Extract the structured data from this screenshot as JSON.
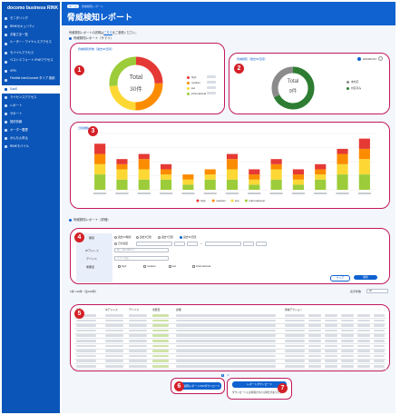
{
  "sidebar": {
    "brand": "docomo business RINK",
    "items": [
      {
        "label": "モニタリング"
      },
      {
        "label": "RINKセキュリティ"
      },
      {
        "label": "お客さま一覧"
      },
      {
        "label": "ルーター・ワイヤレスアクセス"
      },
      {
        "label": "モバイルアクセス"
      },
      {
        "label": "ベストエフォート IPoEアクセス"
      },
      {
        "label": "VPN"
      },
      {
        "label": "Flexible InterConnect タイプ 接続"
      },
      {
        "label": "SaaS"
      },
      {
        "label": "ライセンスアクセス"
      },
      {
        "label": "レポート"
      },
      {
        "label": "サポート"
      },
      {
        "label": "契約情報"
      },
      {
        "label": "オーダー履歴"
      },
      {
        "label": "かんたん申込"
      },
      {
        "label": "RINKモバイル"
      }
    ],
    "active_index": 8
  },
  "header": {
    "crumb_home": "ホーム",
    "crumb_current": "脅威検知レポート",
    "title": "脅威検知レポート"
  },
  "intro": {
    "text": "脅威検知レポートの説明は",
    "link": "こちら",
    "suffix": "をご参照ください。"
  },
  "summary_heading": "脅威検知レポート（サマリ）",
  "card1": {
    "title": "脅威検知件数（過去30日間）",
    "total_label": "Total",
    "total_value": "30件",
    "legend": [
      "high",
      "medium",
      "low",
      "informational"
    ]
  },
  "card2": {
    "title": "脅威検知（過去30日間）",
    "date": "2024/01/31",
    "total_label": "Total",
    "total_value": "9件",
    "legend": [
      "未対応",
      "対応済み"
    ]
  },
  "card3": {
    "title": "日別推移"
  },
  "chart_data": {
    "type": "bar",
    "stacked": true,
    "categories": [
      "",
      "",
      "",
      "",
      "",
      "",
      "",
      "",
      "",
      "",
      "",
      "",
      ""
    ],
    "series": [
      {
        "name": "high",
        "values": [
          2,
          1,
          1,
          1,
          0,
          0,
          1,
          1,
          1,
          1,
          1,
          1,
          2
        ]
      },
      {
        "name": "medium",
        "values": [
          2,
          1,
          2,
          1,
          1,
          1,
          2,
          1,
          1,
          1,
          1,
          2,
          2
        ]
      },
      {
        "name": "low",
        "values": [
          2,
          2,
          2,
          1,
          1,
          1,
          2,
          1,
          2,
          1,
          1,
          2,
          3
        ]
      },
      {
        "name": "informational",
        "values": [
          3,
          2,
          2,
          2,
          1,
          2,
          2,
          1,
          2,
          1,
          2,
          3,
          3
        ]
      }
    ],
    "colors": {
      "high": "#e53935",
      "medium": "#fb8c00",
      "low": "#fdd835",
      "informational": "#9ccc3a"
    },
    "legend_position": "bottom",
    "grid": true
  },
  "list_heading": "脅威検知レポート（詳細）",
  "filter": {
    "period_label": "期間",
    "period_options": [
      "過去24時間",
      "過去3日間",
      "過去7日間",
      "過去30日間",
      "日付指定"
    ],
    "ip_label": "IPアドレス",
    "ip_placeholder": "例：192.168.0.1",
    "device_label": "デバイス",
    "device_placeholder": "デバイス名",
    "severity_label": "重要度",
    "severity_options": [
      "high",
      "medium",
      "low",
      "informational"
    ],
    "reset": "クリア",
    "search": "検索"
  },
  "results": {
    "count": "1件～20件（全100件）",
    "per_page_label": "表示件数",
    "per_page_value": "20",
    "columns": [
      "日時",
      "IPアドレス",
      "デバイス",
      "重要度",
      "詳細",
      "脅威アクション"
    ],
    "pager": [
      "1",
      "2"
    ]
  },
  "downloads": {
    "button1": "脅威検知レポートCSVダウンロード",
    "button2": "レポートダウンロード",
    "note": "ダウンロードには時間がかかる場合があります。"
  },
  "badges": [
    "1",
    "2",
    "3",
    "4",
    "5",
    "6",
    "7"
  ]
}
